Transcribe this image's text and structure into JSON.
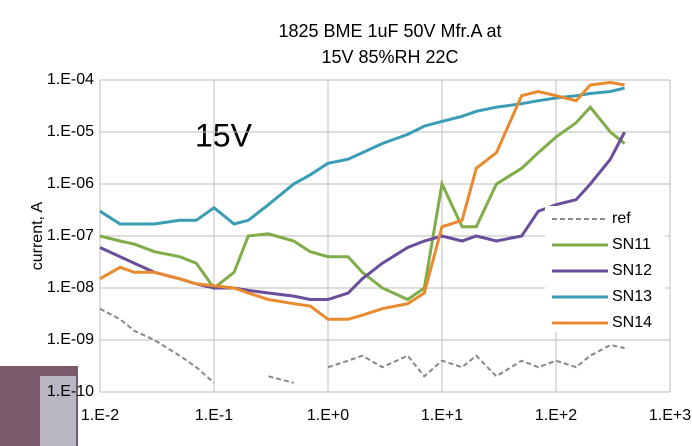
{
  "chart_data": {
    "type": "line",
    "title": [
      "1825 BME 1uF 50V Mfr.A  at",
      "15V 85%RH 22C"
    ],
    "annotation": "15V",
    "y_label": "current, A",
    "x_scale": "log",
    "y_scale": "log",
    "grid": true,
    "legend": "right",
    "xlim": [
      0.01,
      1000
    ],
    "ylim": [
      1e-10,
      0.0001
    ],
    "xticks": [
      {
        "value": 0.01,
        "label": "1.E-2"
      },
      {
        "value": 0.1,
        "label": "1.E-1"
      },
      {
        "value": 1,
        "label": "1.E+0"
      },
      {
        "value": 10,
        "label": "1.E+1"
      },
      {
        "value": 100,
        "label": "1.E+2"
      },
      {
        "value": 1000,
        "label": "1.E+3"
      }
    ],
    "yticks": [
      {
        "value": 1e-10,
        "label": "1.E-10"
      },
      {
        "value": 1e-09,
        "label": "1.E-09"
      },
      {
        "value": 1e-08,
        "label": "1.E-08"
      },
      {
        "value": 1e-07,
        "label": "1.E-07"
      },
      {
        "value": 1e-06,
        "label": "1.E-06"
      },
      {
        "value": 1e-05,
        "label": "1.E-05"
      },
      {
        "value": 0.0001,
        "label": "1.E-04"
      }
    ],
    "x": [
      0.01,
      0.015,
      0.02,
      0.03,
      0.05,
      0.07,
      0.1,
      0.15,
      0.2,
      0.3,
      0.5,
      0.7,
      1,
      1.5,
      2,
      3,
      5,
      7,
      10,
      15,
      20,
      30,
      50,
      70,
      100,
      150,
      200,
      300,
      400
    ],
    "series": [
      {
        "name": "ref",
        "color": "#888888",
        "line_style": "dashed",
        "values": [
          4e-09,
          2.5e-09,
          1.5e-09,
          1e-09,
          5e-10,
          3e-10,
          1.5e-10,
          null,
          null,
          2e-10,
          1.5e-10,
          null,
          3e-10,
          4e-10,
          5e-10,
          3e-10,
          5e-10,
          2e-10,
          4e-10,
          3e-10,
          5e-10,
          2e-10,
          4e-10,
          3e-10,
          4e-10,
          3e-10,
          5e-10,
          8e-10,
          7e-10
        ]
      },
      {
        "name": "SN11",
        "color": "#7fad48",
        "line_style": "solid",
        "values": [
          1e-07,
          8e-08,
          7e-08,
          5e-08,
          4e-08,
          3e-08,
          1e-08,
          2e-08,
          1e-07,
          1.1e-07,
          8e-08,
          5e-08,
          4e-08,
          4e-08,
          2e-08,
          1e-08,
          6e-09,
          1e-08,
          1e-06,
          1.5e-07,
          1.5e-07,
          1e-06,
          2e-06,
          4e-06,
          8e-06,
          1.5e-05,
          3e-05,
          1e-05,
          6e-06
        ]
      },
      {
        "name": "SN12",
        "color": "#6a4d9b",
        "line_style": "solid",
        "values": [
          6e-08,
          4e-08,
          3e-08,
          2e-08,
          1.5e-08,
          1.2e-08,
          1e-08,
          1e-08,
          9e-09,
          8e-09,
          7e-09,
          6e-09,
          6e-09,
          8e-09,
          1.5e-08,
          3e-08,
          6e-08,
          8e-08,
          1e-07,
          8e-08,
          1e-07,
          8e-08,
          1e-07,
          3e-07,
          4e-07,
          5e-07,
          1e-06,
          3e-06,
          1e-05
        ]
      },
      {
        "name": "SN13",
        "color": "#3a9cb5",
        "line_style": "solid",
        "values": [
          3e-07,
          1.7e-07,
          1.7e-07,
          1.7e-07,
          2e-07,
          2e-07,
          3.5e-07,
          1.7e-07,
          2e-07,
          4e-07,
          1e-06,
          1.5e-06,
          2.5e-06,
          3e-06,
          4e-06,
          6e-06,
          9e-06,
          1.3e-05,
          1.6e-05,
          2e-05,
          2.5e-05,
          3e-05,
          3.5e-05,
          4e-05,
          4.5e-05,
          5e-05,
          5.5e-05,
          6e-05,
          7e-05
        ]
      },
      {
        "name": "SN14",
        "color": "#e98a2f",
        "line_style": "solid",
        "values": [
          1.5e-08,
          2.5e-08,
          2e-08,
          2e-08,
          1.5e-08,
          1.2e-08,
          1.1e-08,
          1e-08,
          8e-09,
          6e-09,
          5e-09,
          4.5e-09,
          2.5e-09,
          2.5e-09,
          3e-09,
          4e-09,
          5e-09,
          8e-09,
          1.5e-07,
          2e-07,
          2e-06,
          4e-06,
          5e-05,
          6e-05,
          5e-05,
          4e-05,
          8e-05,
          9e-05,
          8e-05
        ]
      }
    ]
  }
}
